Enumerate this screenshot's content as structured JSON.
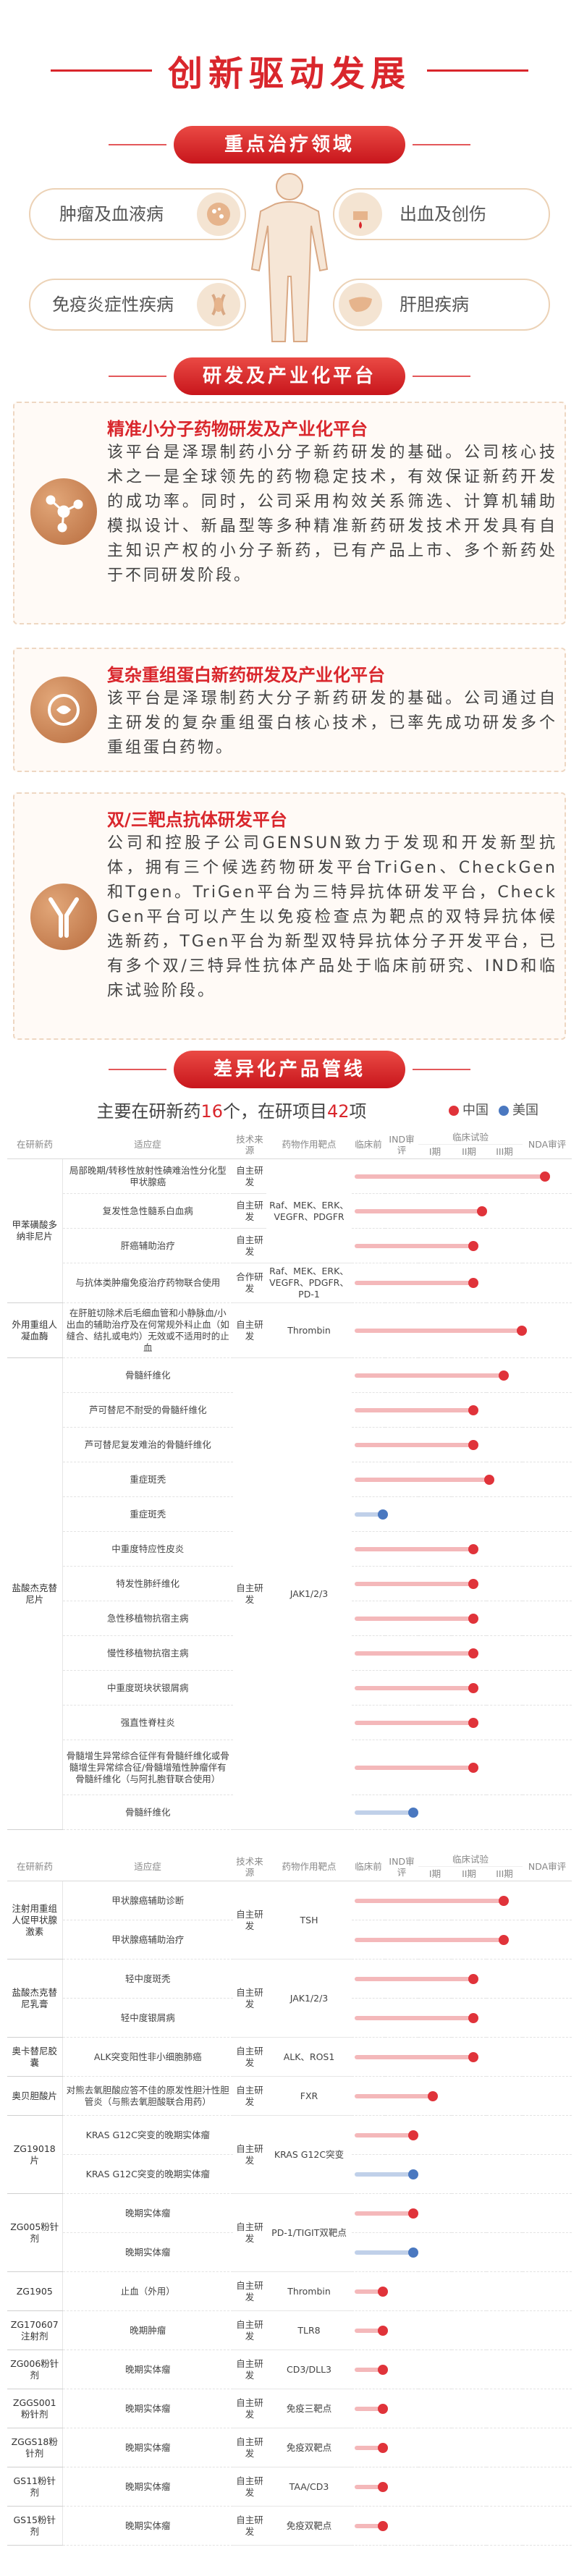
{
  "title": "创新驱动发展",
  "therapy": {
    "title": "重点治疗领域",
    "areas": [
      "肿瘤及血液病",
      "出血及创伤",
      "免疫炎症性疾病",
      "肝胆疾病"
    ]
  },
  "platforms": {
    "title": "研发及产业化平台",
    "items": [
      {
        "name": "精准小分子药物研发及产业化平台",
        "text": "该平台是泽璟制药小分子新药研发的基础。公司核心技术之一是全球领先的药物稳定技术，有效保证新药开发的成功率。同时，公司采用构效关系筛选、计算机辅助模拟设计、新晶型等多种精准新药研发技术开发具有自主知识产权的小分子新药，已有产品上市、多个新药处于不同研发阶段。"
      },
      {
        "name": "复杂重组蛋白新药研发及产业化平台",
        "text": "该平台是泽璟制药大分子新药研发的基础。公司通过自主研发的复杂重组蛋白核心技术，已率先成功研发多个重组蛋白药物。"
      },
      {
        "name": "双/三靶点抗体研发平台",
        "text": "公司和控股子公司GENSUN致力于发现和开发新型抗体，拥有三个候选药物研发平台TriGen、CheckGen和Tgen。TriGen平台为三特异抗体研发平台，CheckGen平台可以产生以免疫检查点为靶点的双特异抗体候选新药，TGen平台为新型双特异抗体分子开发平台，已有多个双/三特异性抗体产品处于临床前研究、IND和临床试验阶段。"
      }
    ]
  },
  "pipeline": {
    "title": "差异化产品管线",
    "summary": {
      "prefix": "主要在研新药",
      "drugs": 16,
      "middle": "个，在研项目",
      "projects": 42,
      "suffix": "项"
    },
    "legend": [
      {
        "name": "中国",
        "color": "#e0333a"
      },
      {
        "name": "美国",
        "color": "#4a78c0"
      }
    ],
    "columns": {
      "drug": "在研新药",
      "indication": "适应症",
      "source": "技术来源",
      "target": "药物作用靶点",
      "preclinical": "临床前",
      "ind": "IND审评",
      "clinical": "临床试验",
      "phases": [
        "I期",
        "II期",
        "III期"
      ],
      "nda": "NDA审评"
    },
    "tables": [
      {
        "groups": [
          {
            "drug": "甲苯磺酸多纳非尼片",
            "rows": [
              {
                "indication": "局部晚期/转移性放射性碘难治性分化型甲状腺癌",
                "source": "自主研发",
                "target": "Raf、MEK、ERK、VEGFR、PDGFR",
                "region": "中国",
                "progress": 5.4
              },
              {
                "indication": "复发性急性髓系白血病",
                "source": "自主研发",
                "region": "中国",
                "progress": 3.8
              },
              {
                "indication": "肝癌辅助治疗",
                "source": "自主研发",
                "region": "中国",
                "progress": 3.55
              },
              {
                "indication": "与抗体类肿瘤免疫治疗药物联合使用",
                "source": "合作研发",
                "target": "Raf、MEK、ERK、VEGFR、PDGFR、PD-1",
                "region": "中国",
                "progress": 3.55
              }
            ]
          },
          {
            "drug": "外用重组人凝血酶",
            "rows": [
              {
                "indication": "在肝脏切除术后毛细血管和小静脉血/小出血的辅助治疗及在何常规外科止血（如缝合、结扎或电灼）无效或不适用时的止血",
                "source": "自主研发",
                "target": "Thrombin",
                "region": "中国",
                "progress": 4.9
              }
            ]
          },
          {
            "drug": "盐酸杰克替尼片",
            "rows": [
              {
                "indication": "骨髓纤维化",
                "source": "自主研发",
                "target": "JAK1/2/3",
                "region": "中国",
                "progress": 4.4
              },
              {
                "indication": "芦可替尼不耐受的骨髓纤维化",
                "region": "中国",
                "progress": 3.55
              },
              {
                "indication": "芦可替尼复发难治的骨髓纤维化",
                "region": "中国",
                "progress": 3.55
              },
              {
                "indication": "重症斑秃",
                "region": "中国",
                "progress": 4.0
              },
              {
                "indication": "重症斑秃",
                "region": "美国",
                "progress": 0.85
              },
              {
                "indication": "中重度特应性皮炎",
                "region": "中国",
                "progress": 3.55
              },
              {
                "indication": "特发性肺纤维化",
                "region": "中国",
                "progress": 3.55
              },
              {
                "indication": "急性移植物抗宿主病",
                "region": "中国",
                "progress": 3.55
              },
              {
                "indication": "慢性移植物抗宿主病",
                "region": "中国",
                "progress": 3.55
              },
              {
                "indication": "中重度斑块状银屑病",
                "region": "中国",
                "progress": 3.55
              },
              {
                "indication": "强直性脊柱炎",
                "region": "中国",
                "progress": 3.55
              },
              {
                "indication": "骨髓增生异常综合征伴有骨髓纤维化或骨髓增生异常综合征/骨髓增殖性肿瘤伴有骨髓纤维化（与阿扎胞苷联合使用）",
                "region": "中国",
                "progress": 3.55
              },
              {
                "indication": "骨髓纤维化",
                "region": "美国",
                "progress": 1.75
              }
            ]
          }
        ]
      },
      {
        "groups": [
          {
            "drug": "注射用重组人促甲状腺激素",
            "rows": [
              {
                "indication": "甲状腺癌辅助诊断",
                "source": "自主研发",
                "target": "TSH",
                "region": "中国",
                "progress": 4.4
              },
              {
                "indication": "甲状腺癌辅助治疗",
                "region": "中国",
                "progress": 4.4
              }
            ]
          },
          {
            "drug": "盐酸杰克替尼乳膏",
            "rows": [
              {
                "indication": "轻中度斑秃",
                "source": "自主研发",
                "target": "JAK1/2/3",
                "region": "中国",
                "progress": 3.55
              },
              {
                "indication": "轻中度银屑病",
                "region": "中国",
                "progress": 3.55
              }
            ]
          },
          {
            "drug": "奥卡替尼胶囊",
            "rows": [
              {
                "indication": "ALK突变阳性非小细胞肺癌",
                "source": "自主研发",
                "target": "ALK、ROS1",
                "region": "中国",
                "progress": 3.55
              }
            ]
          },
          {
            "drug": "奥贝胆酸片",
            "rows": [
              {
                "indication": "对熊去氧胆酸应答不佳的原发性胆汁性胆管炎（与熊去氧胆酸联合用药）",
                "source": "自主研发",
                "target": "FXR",
                "region": "中国",
                "progress": 2.35
              }
            ]
          },
          {
            "drug": "ZG19018片",
            "rows": [
              {
                "indication": "KRAS G12C突变的晚期实体瘤",
                "source": "自主研发",
                "target": "KRAS G12C突变",
                "region": "中国",
                "progress": 1.75
              },
              {
                "indication": "KRAS G12C突变的晚期实体瘤",
                "region": "美国",
                "progress": 1.75
              }
            ]
          },
          {
            "drug": "ZG005粉针剂",
            "rows": [
              {
                "indication": "晚期实体瘤",
                "source": "自主研发",
                "target": "PD-1/TIGIT双靶点",
                "region": "中国",
                "progress": 1.75
              },
              {
                "indication": "晚期实体瘤",
                "region": "美国",
                "progress": 1.75
              }
            ]
          },
          {
            "drug": "ZG1905",
            "rows": [
              {
                "indication": "止血（外用）",
                "source": "自主研发",
                "target": "Thrombin",
                "region": "中国",
                "progress": 0.85
              }
            ]
          },
          {
            "drug": "ZG170607注射剂",
            "rows": [
              {
                "indication": "晚期肿瘤",
                "source": "自主研发",
                "target": "TLR8",
                "region": "中国",
                "progress": 0.85
              }
            ]
          },
          {
            "drug": "ZG006粉针剂",
            "rows": [
              {
                "indication": "晚期实体瘤",
                "source": "自主研发",
                "target": "CD3/DLL3",
                "region": "中国",
                "progress": 0.85
              }
            ]
          },
          {
            "drug": "ZGGS001粉针剂",
            "rows": [
              {
                "indication": "晚期实体瘤",
                "source": "自主研发",
                "target": "免疫三靶点",
                "region": "中国",
                "progress": 0.85
              }
            ]
          },
          {
            "drug": "ZGGS18粉针剂",
            "rows": [
              {
                "indication": "晚期实体瘤",
                "source": "自主研发",
                "target": "免疫双靶点",
                "region": "中国",
                "progress": 0.85
              }
            ]
          },
          {
            "drug": "GS11粉针剂",
            "rows": [
              {
                "indication": "晚期实体瘤",
                "source": "自主研发",
                "target": "TAA/CD3",
                "region": "中国",
                "progress": 0.85
              }
            ]
          },
          {
            "drug": "GS15粉针剂",
            "rows": [
              {
                "indication": "晚期实体瘤",
                "source": "自主研发",
                "target": "免疫双靶点",
                "region": "中国",
                "progress": 0.85
              }
            ]
          }
        ]
      }
    ]
  }
}
